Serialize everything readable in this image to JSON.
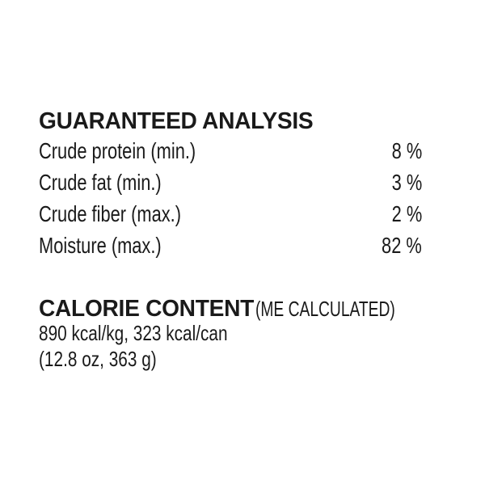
{
  "guaranteed_analysis": {
    "title": "GUARANTEED ANALYSIS",
    "rows": [
      {
        "label": "Crude protein (min.)",
        "value": "8 %"
      },
      {
        "label": "Crude fat (min.)",
        "value": "3 %"
      },
      {
        "label": "Crude fiber (max.)",
        "value": "2 %"
      },
      {
        "label": "Moisture (max.)",
        "value": "82 %"
      }
    ]
  },
  "calorie_content": {
    "title": "CALORIE CONTENT",
    "subtitle": "(ME CALCULATED)",
    "line1": "890 kcal/kg, 323 kcal/can",
    "line2": "(12.8 oz, 363 g)"
  }
}
